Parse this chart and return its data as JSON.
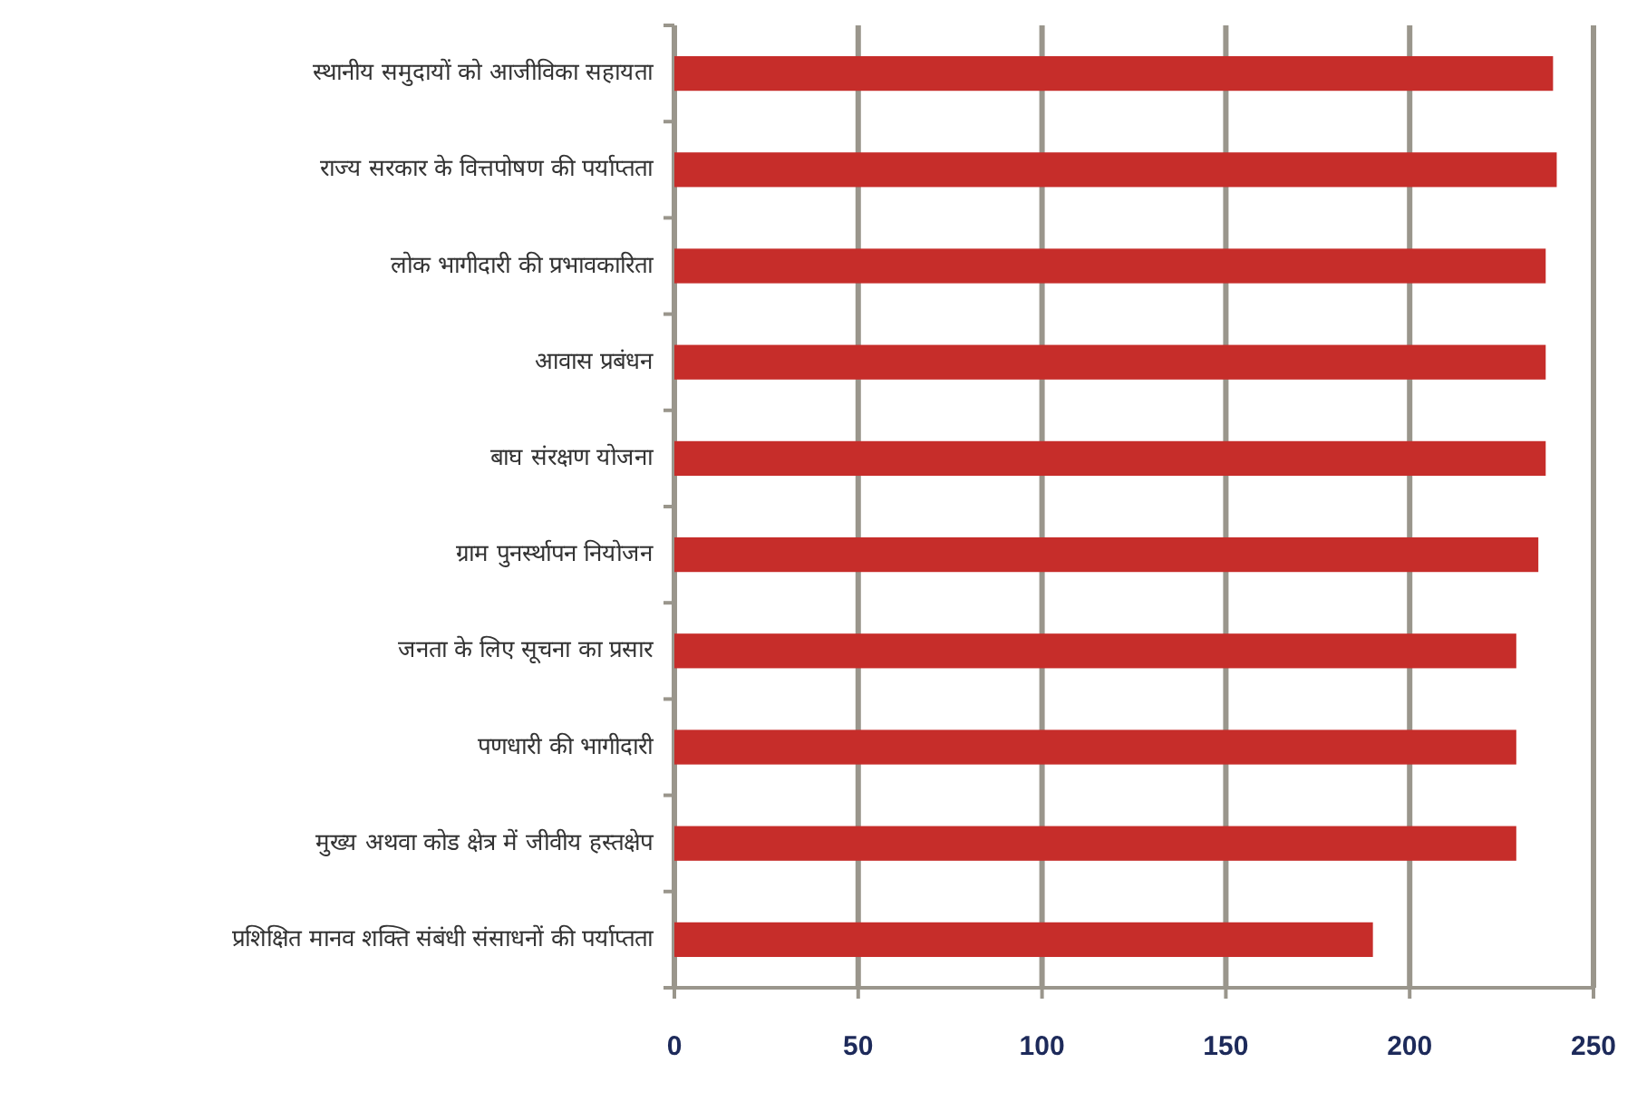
{
  "chart_data": {
    "type": "bar",
    "orientation": "horizontal",
    "categories": [
      "स्थानीय समुदायों को आजीविका सहायता",
      "राज्य सरकार के वित्तपोषण की पर्याप्तता",
      "लोक भागीदारी की प्रभावकारिता",
      "आवास प्रबंधन",
      "बाघ संरक्षण योजना",
      "ग्राम पुनर्स्थापन नियोजन",
      "जनता के लिए सूचना का प्रसार",
      "पणधारी की भागीदारी",
      "मुख्य अथवा कोड क्षेत्र में जीवीय हस्तक्षेप",
      "प्रशिक्षित मानव शक्ति संबंधी संसाधनों की पर्याप्तता"
    ],
    "values": [
      239,
      240,
      237,
      237,
      237,
      235,
      229,
      229,
      229,
      190
    ],
    "color": "#c62d2a",
    "xlim": [
      0,
      250
    ],
    "xticks": [
      0,
      50,
      100,
      150,
      200,
      250
    ],
    "grid": "x"
  }
}
